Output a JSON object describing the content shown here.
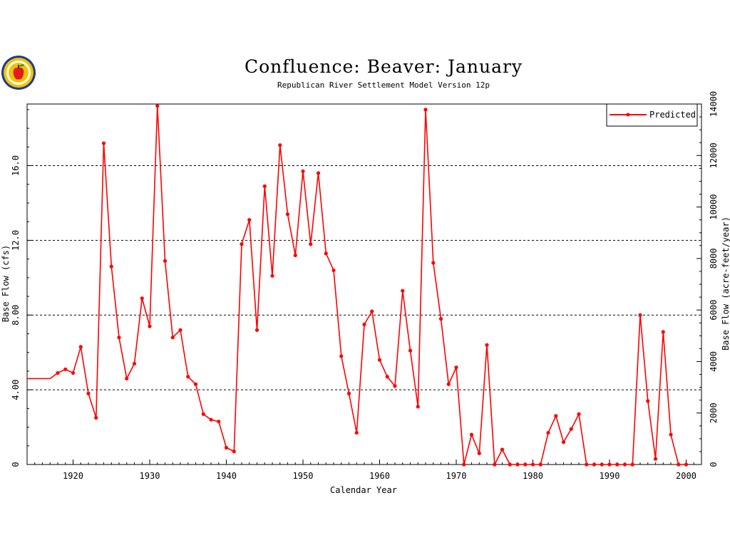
{
  "logo": {
    "icon": "apple-seal-logo"
  },
  "chart_data": {
    "type": "line",
    "title": "Confluence: Beaver: January",
    "subtitle": "Republican River Settlement Model Version 12p",
    "xlabel": "Calendar Year",
    "ylabel": "Base Flow (cfs)",
    "y2label": "Base Flow (acre-feet/year)",
    "xlim": [
      1914,
      2002
    ],
    "ylim": [
      0,
      19.3
    ],
    "y2lim": [
      0,
      14000
    ],
    "x_ticks": [
      1920,
      1930,
      1940,
      1950,
      1960,
      1970,
      1980,
      1990,
      2000
    ],
    "x_tick_labels": [
      "1920",
      "1930",
      "1940",
      "1950",
      "1960",
      "1970",
      "1980",
      "1990",
      "2000"
    ],
    "y_ticks": [
      0,
      4,
      8,
      12,
      16
    ],
    "y_tick_labels": [
      "0",
      "4.00",
      "8.00",
      "12.0",
      "16.0"
    ],
    "y2_ticks": [
      0,
      2000,
      4000,
      6000,
      8000,
      10000,
      12000,
      14000
    ],
    "y2_tick_labels": [
      "0",
      "2000",
      "4000",
      "6000",
      "8000",
      "10000",
      "12000",
      "14000"
    ],
    "grid_y": [
      4,
      8,
      12,
      16
    ],
    "legend": {
      "position": "top-right",
      "entries": [
        "Predicted"
      ]
    },
    "colors": {
      "series": "#ff0000",
      "grid": "#000000",
      "axis": "#000000"
    },
    "series": [
      {
        "name": "Predicted",
        "x": [
          1914,
          1915,
          1916,
          1917,
          1918,
          1919,
          1920,
          1921,
          1922,
          1923,
          1924,
          1925,
          1926,
          1927,
          1928,
          1929,
          1930,
          1931,
          1932,
          1933,
          1934,
          1935,
          1936,
          1937,
          1938,
          1939,
          1940,
          1941,
          1942,
          1943,
          1944,
          1945,
          1946,
          1947,
          1948,
          1949,
          1950,
          1951,
          1952,
          1953,
          1954,
          1955,
          1956,
          1957,
          1958,
          1959,
          1960,
          1961,
          1962,
          1963,
          1964,
          1965,
          1966,
          1967,
          1968,
          1969,
          1970,
          1971,
          1972,
          1973,
          1974,
          1975,
          1976,
          1977,
          1978,
          1979,
          1980,
          1981,
          1982,
          1983,
          1984,
          1985,
          1986,
          1987,
          1988,
          1989,
          1990,
          1991,
          1992,
          1993,
          1994,
          1995,
          1996,
          1997,
          1998,
          1999,
          2000
        ],
        "values": [
          4.6,
          4.6,
          4.6,
          4.6,
          4.9,
          5.1,
          4.9,
          6.3,
          3.8,
          2.5,
          17.2,
          10.6,
          6.8,
          4.6,
          5.4,
          8.9,
          7.4,
          19.2,
          10.9,
          6.8,
          7.2,
          4.7,
          4.3,
          2.7,
          2.4,
          2.3,
          0.9,
          0.7,
          11.8,
          13.1,
          7.2,
          14.9,
          10.1,
          17.1,
          13.4,
          11.2,
          15.7,
          11.8,
          15.6,
          11.3,
          10.4,
          5.8,
          3.8,
          1.7,
          7.5,
          8.2,
          5.6,
          4.7,
          4.2,
          9.3,
          6.1,
          3.1,
          19.0,
          10.8,
          7.8,
          4.3,
          5.2,
          0,
          1.6,
          0.6,
          6.4,
          0,
          0.8,
          0,
          0,
          0,
          0,
          0,
          1.7,
          2.6,
          1.2,
          1.9,
          2.7,
          0,
          0,
          0,
          0,
          0,
          0,
          0,
          8.0,
          3.4,
          0.3,
          7.1,
          1.6,
          0,
          0
        ]
      }
    ]
  }
}
